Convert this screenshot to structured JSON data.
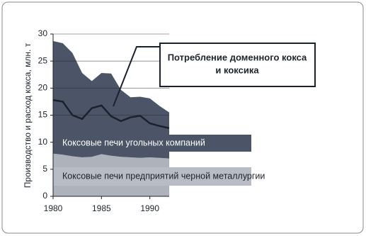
{
  "chart_data": {
    "type": "area",
    "ylabel": "Производство и расход кокса, млн. т",
    "x": [
      1980,
      1981,
      1982,
      1983,
      1984,
      1985,
      1986,
      1987,
      1988,
      1989,
      1990,
      1991,
      1992
    ],
    "xlim": [
      1980,
      1992
    ],
    "xticks": [
      1980,
      1985,
      1990
    ],
    "ylim": [
      0,
      30
    ],
    "yticks": [
      0,
      5,
      10,
      15,
      20,
      25,
      30
    ],
    "grid": true,
    "series": [
      {
        "name": "Коксовые печи предприятий черной металлургии",
        "color": "#aeb2bb",
        "values": [
          7.9,
          7.7,
          7.4,
          7.2,
          7.3,
          7.8,
          7.5,
          7.3,
          7.2,
          7.1,
          7.2,
          7.1,
          7.0
        ]
      },
      {
        "name": "Коксовые печи угольных компаний",
        "color": "#4b5567",
        "values": [
          20.8,
          20.6,
          19.1,
          15.6,
          14.0,
          15.0,
          15.2,
          12.4,
          11.1,
          11.3,
          10.9,
          9.6,
          8.5
        ]
      }
    ],
    "line": {
      "color": "#1c222c",
      "values": [
        17.8,
        17.5,
        15.0,
        14.3,
        16.3,
        16.8,
        14.8,
        13.9,
        14.6,
        14.9,
        13.5,
        13.0,
        12.6
      ]
    },
    "annotation": [
      "Потребление доменного кокса",
      "и коксика"
    ]
  }
}
